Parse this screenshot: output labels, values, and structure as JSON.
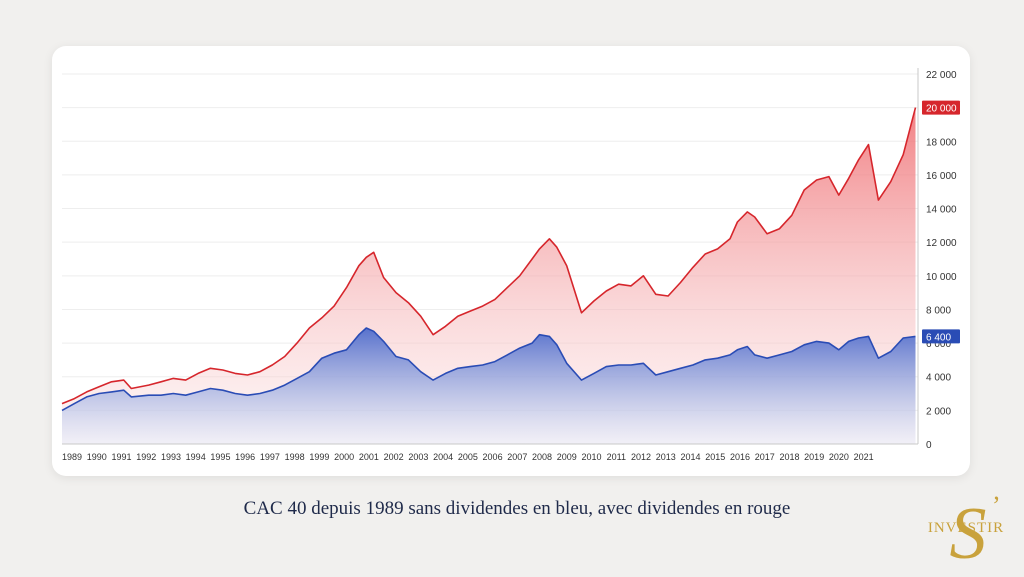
{
  "caption": "CAC 40 depuis 1989 sans dividendes en bleu, avec dividendes en rouge",
  "logo": {
    "text": "INVESTIR",
    "letter": "S",
    "color": "#c9a23c"
  },
  "chart_data": {
    "type": "area",
    "x_tick_labels": [
      "1989",
      "1990",
      "1991",
      "1992",
      "1993",
      "1994",
      "1995",
      "1996",
      "1997",
      "1998",
      "1999",
      "2000",
      "2001",
      "2002",
      "2003",
      "2004",
      "2005",
      "2006",
      "2007",
      "2008",
      "2009",
      "2010",
      "2011",
      "2012",
      "2013",
      "2014",
      "2015",
      "2016",
      "2017",
      "2018",
      "2019",
      "2020",
      "2021"
    ],
    "y_tick_labels": [
      "0",
      "2 000",
      "4 000",
      "6 000",
      "8 000",
      "10 000",
      "12 000",
      "14 000",
      "16 000",
      "18 000",
      "20 000",
      "22 000"
    ],
    "y_ticks": [
      0,
      2000,
      4000,
      6000,
      8000,
      10000,
      12000,
      14000,
      16000,
      18000,
      20000,
      22000
    ],
    "ylim": [
      0,
      22000
    ],
    "xlim": [
      1989,
      2023.6
    ],
    "x": [
      1989.0,
      1989.5,
      1990.0,
      1990.5,
      1991.0,
      1991.5,
      1991.8,
      1992.5,
      1993.0,
      1993.5,
      1994.0,
      1994.5,
      1995.0,
      1995.5,
      1996.0,
      1996.5,
      1997.0,
      1997.5,
      1998.0,
      1998.5,
      1999.0,
      1999.5,
      2000.0,
      2000.5,
      2001.0,
      2001.3,
      2001.6,
      2002.0,
      2002.5,
      2003.0,
      2003.5,
      2004.0,
      2004.5,
      2005.0,
      2005.5,
      2006.0,
      2006.5,
      2007.0,
      2007.5,
      2008.0,
      2008.3,
      2008.7,
      2009.0,
      2009.4,
      2010.0,
      2010.5,
      2011.0,
      2011.5,
      2012.0,
      2012.5,
      2013.0,
      2013.5,
      2014.0,
      2014.5,
      2015.0,
      2015.5,
      2016.0,
      2016.3,
      2016.7,
      2017.0,
      2017.5,
      2018.0,
      2018.5,
      2019.0,
      2019.5,
      2020.0,
      2020.4,
      2020.8,
      2021.2,
      2021.6,
      2022.0,
      2022.5,
      2023.0,
      2023.5
    ],
    "series": [
      {
        "color": "#d6262c",
        "end_label": "20 000",
        "values": [
          2400,
          2700,
          3100,
          3400,
          3700,
          3800,
          3300,
          3500,
          3700,
          3900,
          3800,
          4200,
          4500,
          4400,
          4200,
          4100,
          4300,
          4700,
          5200,
          6000,
          6900,
          7500,
          8200,
          9300,
          10600,
          11100,
          11400,
          9900,
          9000,
          8400,
          7600,
          6500,
          7000,
          7600,
          7900,
          8200,
          8600,
          9300,
          10000,
          11000,
          11600,
          12200,
          11700,
          10600,
          7800,
          8500,
          9100,
          9500,
          9400,
          10000,
          8900,
          8800,
          9600,
          10500,
          11300,
          11600,
          12200,
          13200,
          13800,
          13500,
          12500,
          12800,
          13600,
          15100,
          15700,
          15900,
          14800,
          15800,
          16900,
          17800,
          14500,
          15600,
          17200,
          20000
        ]
      },
      {
        "color": "#2a4cb5",
        "end_label": "6 400",
        "values": [
          2000,
          2400,
          2800,
          3000,
          3100,
          3200,
          2800,
          2900,
          2900,
          3000,
          2900,
          3100,
          3300,
          3200,
          3000,
          2900,
          3000,
          3200,
          3500,
          3900,
          4300,
          5100,
          5400,
          5600,
          6500,
          6900,
          6700,
          6100,
          5200,
          5000,
          4300,
          3800,
          4200,
          4500,
          4600,
          4700,
          4900,
          5300,
          5700,
          6000,
          6500,
          6400,
          5900,
          4800,
          3800,
          4200,
          4600,
          4700,
          4700,
          4800,
          4100,
          4300,
          4500,
          4700,
          5000,
          5100,
          5300,
          5600,
          5800,
          5300,
          5100,
          5300,
          5500,
          5900,
          6100,
          6000,
          5600,
          6100,
          6300,
          6400,
          5100,
          5500,
          6300,
          6400
        ]
      }
    ]
  }
}
